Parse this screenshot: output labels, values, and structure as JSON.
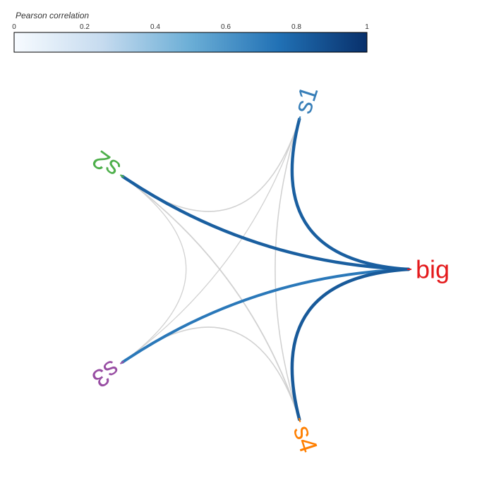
{
  "legend": {
    "title": "Pearson correlation",
    "ticks": [
      "0",
      "0.2",
      "0.4",
      "0.6",
      "0.8",
      "1"
    ],
    "tick_values": [
      0,
      0.2,
      0.4,
      0.6,
      0.8,
      1
    ],
    "range": [
      0,
      1
    ],
    "gradient": [
      "#f7fbff",
      "#c6dbef",
      "#6baed6",
      "#2171b5",
      "#08306b"
    ]
  },
  "nodes": [
    {
      "id": "big",
      "label": "big",
      "color": "#e41a1c"
    },
    {
      "id": "s1",
      "label": "s1",
      "color": "#377eb8"
    },
    {
      "id": "s2",
      "label": "s2",
      "color": "#4daf4a"
    },
    {
      "id": "s3",
      "label": "s3",
      "color": "#984ea3"
    },
    {
      "id": "s4",
      "label": "s4",
      "color": "#ff7f00"
    }
  ],
  "edges": [
    {
      "from": "big",
      "to": "s1",
      "correlation": 0.82
    },
    {
      "from": "big",
      "to": "s2",
      "correlation": 0.82
    },
    {
      "from": "big",
      "to": "s3",
      "correlation": 0.72
    },
    {
      "from": "big",
      "to": "s4",
      "correlation": 0.84
    },
    {
      "from": "s1",
      "to": "s2",
      "correlation": 0.15
    },
    {
      "from": "s1",
      "to": "s3",
      "correlation": 0.1
    },
    {
      "from": "s1",
      "to": "s4",
      "correlation": 0.15
    },
    {
      "from": "s2",
      "to": "s3",
      "correlation": 0.1
    },
    {
      "from": "s2",
      "to": "s4",
      "correlation": 0.2
    },
    {
      "from": "s3",
      "to": "s4",
      "correlation": 0.15
    }
  ]
}
